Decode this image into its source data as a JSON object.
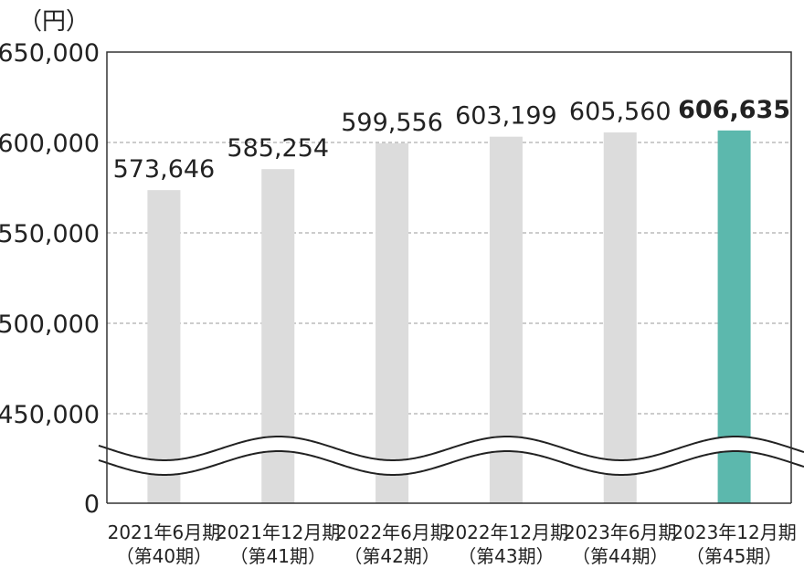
{
  "chart_data": {
    "type": "bar",
    "unit_label": "（円）",
    "categories": [
      [
        "2021年6月期",
        "（第40期）"
      ],
      [
        "2021年12月期",
        "（第41期）"
      ],
      [
        "2022年6月期",
        "（第42期）"
      ],
      [
        "2022年12月期",
        "（第43期）"
      ],
      [
        "2023年6月期",
        "（第44期）"
      ],
      [
        "2023年12月期",
        "（第45期）"
      ]
    ],
    "values": [
      573646,
      585254,
      599556,
      603199,
      605560,
      606635
    ],
    "value_labels": [
      "573,646",
      "585,254",
      "599,556",
      "603,199",
      "605,560",
      "606,635"
    ],
    "y_ticks": [
      {
        "value": 650000,
        "label": "650,000"
      },
      {
        "value": 600000,
        "label": "600,000"
      },
      {
        "value": 550000,
        "label": "550,000"
      },
      {
        "value": 500000,
        "label": "500,000"
      },
      {
        "value": 450000,
        "label": "450,000"
      },
      {
        "value": 0,
        "label": "0"
      }
    ],
    "ylim": [
      0,
      650000
    ],
    "axis_break": true,
    "grid": "dashed horizontal",
    "highlight_index": 5,
    "colors": {
      "bar": "#dcdcdc",
      "highlight": "#5cb8ad",
      "axis": "#333333",
      "grid": "#999999"
    }
  }
}
